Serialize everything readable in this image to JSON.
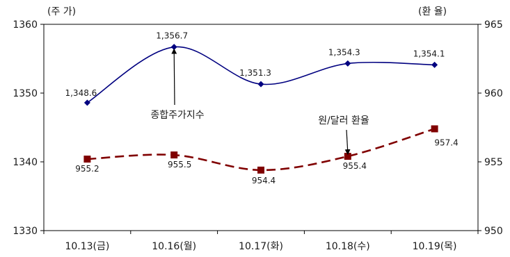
{
  "chart_data": {
    "type": "line",
    "title": "",
    "categories": [
      "10.13(금)",
      "10.16(월)",
      "10.17(화)",
      "10.18(수)",
      "10.19(목)"
    ],
    "series": [
      {
        "name": "종합주가지수",
        "axis": "left",
        "values": [
          1348.6,
          1356.7,
          1351.3,
          1354.3,
          1354.1
        ],
        "labels": [
          "1,348.6",
          "1,356.7",
          "1,351.3",
          "1,354.3",
          "1,354.1"
        ],
        "color": "#000080",
        "marker": "diamond",
        "dash": false
      },
      {
        "name": "원/달러 환율",
        "axis": "right",
        "values": [
          955.2,
          955.5,
          954.4,
          955.4,
          957.4
        ],
        "labels": [
          "955.2",
          "955.5",
          "954.4",
          "955.4",
          "957.4"
        ],
        "color": "#800000",
        "marker": "square",
        "dash": true
      }
    ],
    "left_axis": {
      "unit_label": "(주 가)",
      "ylim": [
        1330,
        1360
      ],
      "ticks": [
        "1330",
        "1340",
        "1350",
        "1360"
      ]
    },
    "right_axis": {
      "unit_label": "(환 율)",
      "ylim": [
        950,
        965
      ],
      "ticks": [
        "950",
        "955",
        "960",
        "965"
      ]
    },
    "annotations": [
      {
        "text": "종합주가지수",
        "series": 0,
        "point": 1
      },
      {
        "text": "원/달러 환율",
        "series": 1,
        "point": 3
      }
    ],
    "grid": false,
    "legend": "none"
  }
}
